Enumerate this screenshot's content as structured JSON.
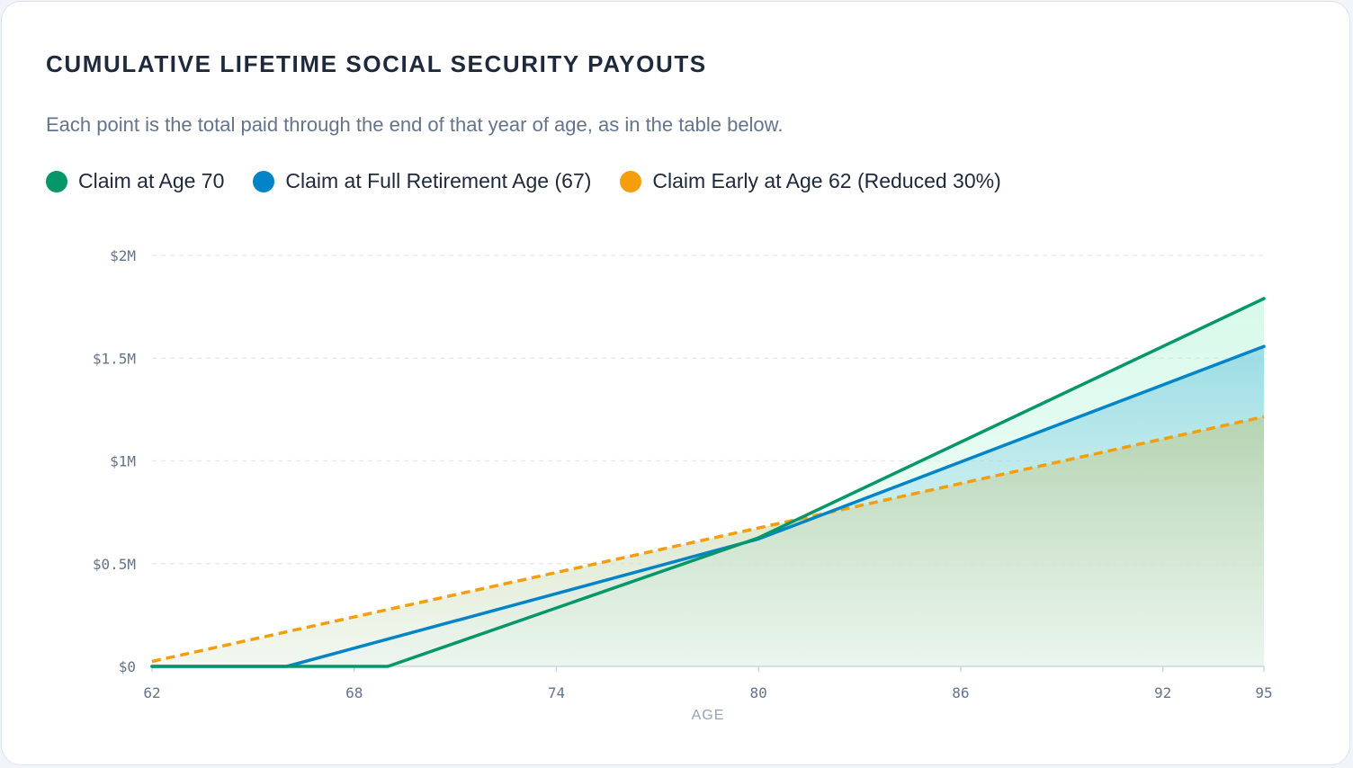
{
  "title": "CUMULATIVE LIFETIME SOCIAL SECURITY PAYOUTS",
  "subtitle": "Each point is the total paid through the end of that year of age, as in the table below.",
  "legend": [
    {
      "label": "Claim at Age 70",
      "color": "#059669"
    },
    {
      "label": "Claim at Full Retirement Age (67)",
      "color": "#0284c7"
    },
    {
      "label": "Claim Early at Age 62 (Reduced 30%)",
      "color": "#f59e0b"
    }
  ],
  "chart_data": {
    "type": "area",
    "xlabel": "AGE",
    "ylabel": "",
    "x_ticks": [
      62,
      68,
      74,
      80,
      86,
      92,
      95
    ],
    "y_ticks": [
      0,
      500000,
      1000000,
      1500000,
      2000000
    ],
    "y_tick_labels": [
      "$0",
      "$0.5M",
      "$1M",
      "$1.5M",
      "$2M"
    ],
    "xlim": [
      62,
      95
    ],
    "ylim": [
      0,
      2000000
    ],
    "grid": "horizontal dashed",
    "x": [
      62,
      66,
      69,
      80,
      95
    ],
    "series": [
      {
        "name": "Claim at Age 70",
        "color": "#059669",
        "dashed": false,
        "points": [
          [
            62,
            0
          ],
          [
            69,
            0
          ],
          [
            80,
            626000
          ],
          [
            95,
            1790000
          ]
        ]
      },
      {
        "name": "Claim at Full Retirement Age (67)",
        "color": "#0284c7",
        "dashed": false,
        "points": [
          [
            62,
            0
          ],
          [
            66,
            0
          ],
          [
            80,
            620000
          ],
          [
            95,
            1557000
          ]
        ]
      },
      {
        "name": "Claim Early at Age 62 (Reduced 30%)",
        "color": "#f59e0b",
        "dashed": true,
        "points": [
          [
            62,
            24000
          ],
          [
            95,
            1215000
          ]
        ]
      }
    ]
  }
}
